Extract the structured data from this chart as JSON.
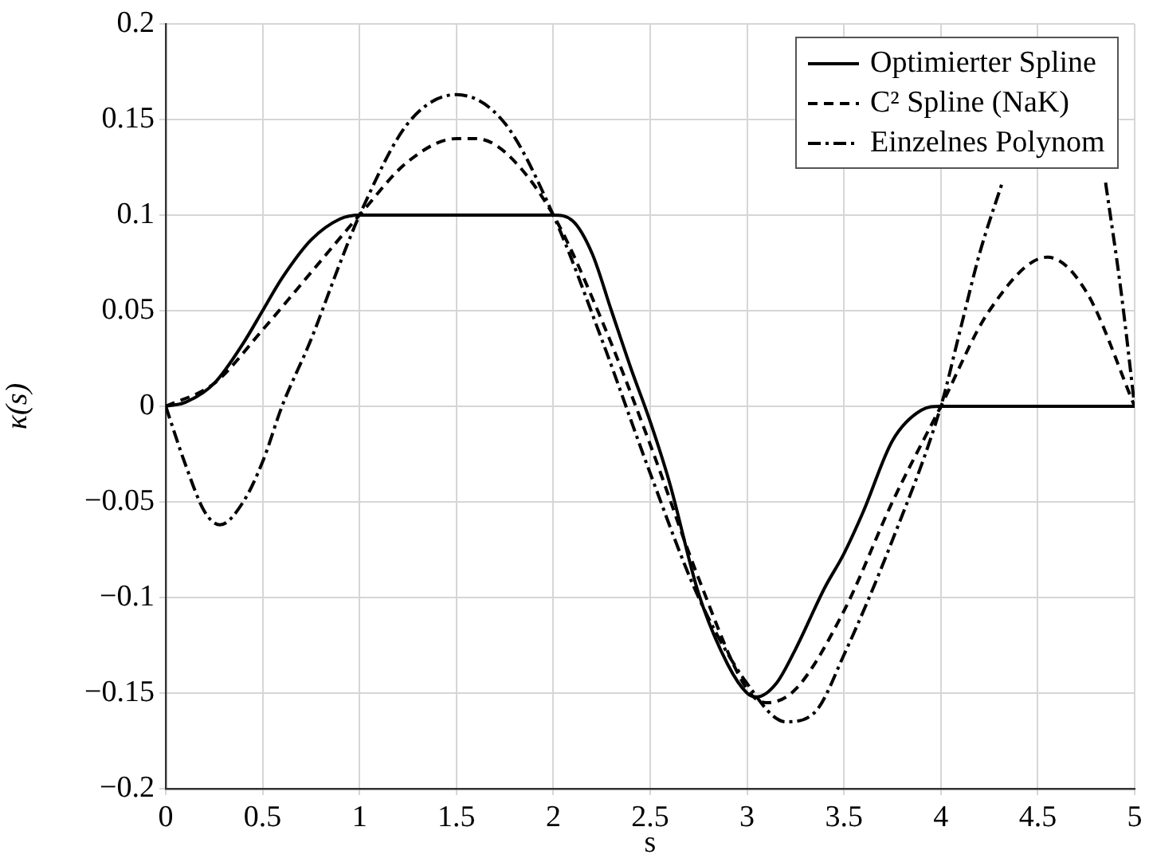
{
  "chart_data": {
    "type": "line",
    "xlabel": "s",
    "ylabel": "κ(s)",
    "xlim": [
      0,
      5
    ],
    "xticks": [
      0,
      0.5,
      1,
      1.5,
      2,
      2.5,
      3,
      3.5,
      4,
      4.5,
      5
    ],
    "ylim": [
      -0.2,
      0.2
    ],
    "yticks": [
      {
        "value": -0.2,
        "label": "−0.2"
      },
      {
        "value": -0.15,
        "label": "−0.15"
      },
      {
        "value": -0.1,
        "label": "−0.1"
      },
      {
        "value": -0.05,
        "label": "−0.05"
      },
      0,
      0.05,
      0.1,
      0.15,
      0.2
    ],
    "grid": true,
    "legend": "top right",
    "marker": "none",
    "series": [
      {
        "name": "Optimierter Spline",
        "color": "#000000",
        "line_style": "solid",
        "x": [
          0,
          0.1,
          0.25,
          0.4,
          0.5,
          0.6,
          0.75,
          0.9,
          1,
          1.5,
          2,
          2.1,
          2.2,
          2.3,
          2.4,
          2.5,
          2.6,
          2.75,
          2.9,
          3,
          3.05,
          3.15,
          3.25,
          3.4,
          3.5,
          3.6,
          3.75,
          3.9,
          4,
          4.5,
          5
        ],
        "values": [
          0,
          0.002,
          0.012,
          0.033,
          0.05,
          0.067,
          0.087,
          0.098,
          0.1,
          0.1,
          0.1,
          0.097,
          0.08,
          0.05,
          0.02,
          -0.008,
          -0.04,
          -0.098,
          -0.135,
          -0.15,
          -0.152,
          -0.145,
          -0.127,
          -0.095,
          -0.077,
          -0.055,
          -0.018,
          -0.002,
          0,
          0,
          0
        ]
      },
      {
        "name": "C² Spline (NaK)",
        "color": "#000000",
        "line_style": "dashed",
        "x": [
          0,
          0.25,
          0.5,
          0.75,
          1,
          1.25,
          1.5,
          1.6,
          1.75,
          2,
          2.25,
          2.5,
          2.75,
          3,
          3.1,
          3.25,
          3.5,
          3.75,
          4,
          4.25,
          4.55,
          4.75,
          5
        ],
        "values": [
          0,
          0.012,
          0.04,
          0.07,
          0.1,
          0.128,
          0.14,
          0.14,
          0.133,
          0.1,
          0.045,
          -0.02,
          -0.09,
          -0.148,
          -0.155,
          -0.148,
          -0.107,
          -0.05,
          0,
          0.05,
          0.078,
          0.06,
          0
        ]
      },
      {
        "name": "Einzelnes Polynom",
        "color": "#000000",
        "line_style": "dashdot",
        "x": [
          0,
          0.1,
          0.2,
          0.28,
          0.4,
          0.5,
          0.6,
          0.75,
          0.9,
          1,
          1.25,
          1.5,
          1.75,
          2,
          2.25,
          2.5,
          2.75,
          3,
          3.2,
          3.35,
          3.5,
          3.75,
          4,
          4.1,
          4.2,
          4.32,
          4.5,
          4.85,
          4.93,
          5
        ],
        "values": [
          0,
          -0.03,
          -0.055,
          -0.062,
          -0.05,
          -0.029,
          0,
          0.035,
          0.075,
          0.1,
          0.148,
          0.163,
          0.148,
          0.1,
          0.035,
          -0.035,
          -0.1,
          -0.145,
          -0.165,
          -0.16,
          -0.13,
          -0.07,
          0,
          0.04,
          0.08,
          0.118,
          null,
          0.117,
          0.06,
          0
        ]
      }
    ]
  }
}
